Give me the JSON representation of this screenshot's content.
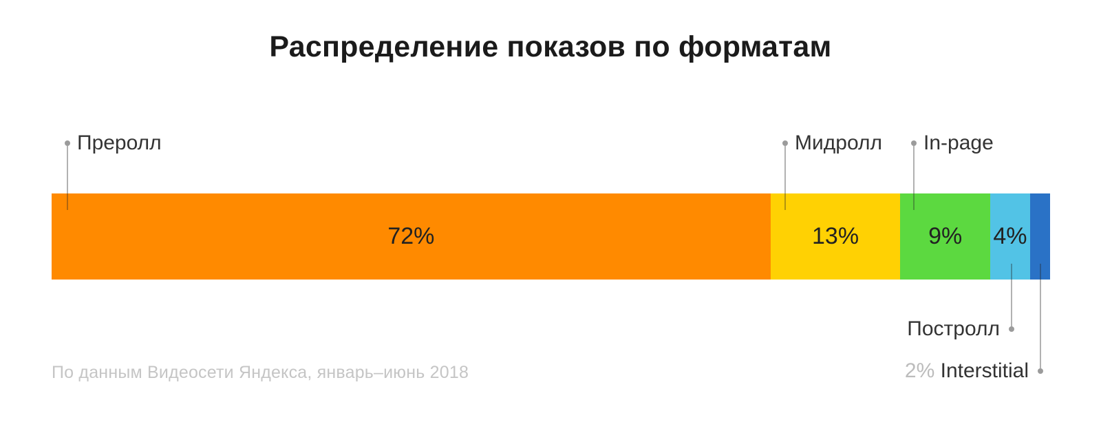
{
  "source_note": "По данным Видеосети Яндекса, январь–июнь 2018",
  "chart_data": {
    "type": "bar",
    "subtype": "horizontal-stacked-100",
    "title": "Распределение показов по форматам",
    "unit": "%",
    "total": 100,
    "grid": false,
    "legend_position": "callouts",
    "categories": [
      "Преролл",
      "Мидролл",
      "In-page",
      "Постролл",
      "Interstitial"
    ],
    "values": [
      72,
      13,
      9,
      4,
      2
    ],
    "segments": [
      {
        "label": "Преролл",
        "value": 72,
        "pct_label": "72%",
        "color": "#ff8a00",
        "callout": "top",
        "pct_position": "inside"
      },
      {
        "label": "Мидролл",
        "value": 13,
        "pct_label": "13%",
        "color": "#ffd103",
        "color_note": "yellow",
        "callout": "top",
        "pct_position": "inside"
      },
      {
        "label": "In-page",
        "value": 9,
        "pct_label": "9%",
        "color": "#5cd940",
        "callout": "top",
        "pct_position": "inside"
      },
      {
        "label": "Постролл",
        "value": 4,
        "pct_label": "4%",
        "color": "#52c3e6",
        "callout": "bottom",
        "pct_position": "inside"
      },
      {
        "label": "Interstitial",
        "value": 2,
        "pct_label": "2%",
        "color": "#2a72c6",
        "callout": "bottom",
        "pct_position": "outside"
      }
    ],
    "style_colors": {
      "background": "#ffffff",
      "title_text": "#1b1b1b",
      "label_text": "#333333",
      "pct_text": "#222222",
      "muted_pct_text": "#bcbcbc",
      "source_text": "#c5c5c5",
      "callout_line": "#a8a8a8",
      "callout_dot": "#9b9b9b"
    }
  }
}
